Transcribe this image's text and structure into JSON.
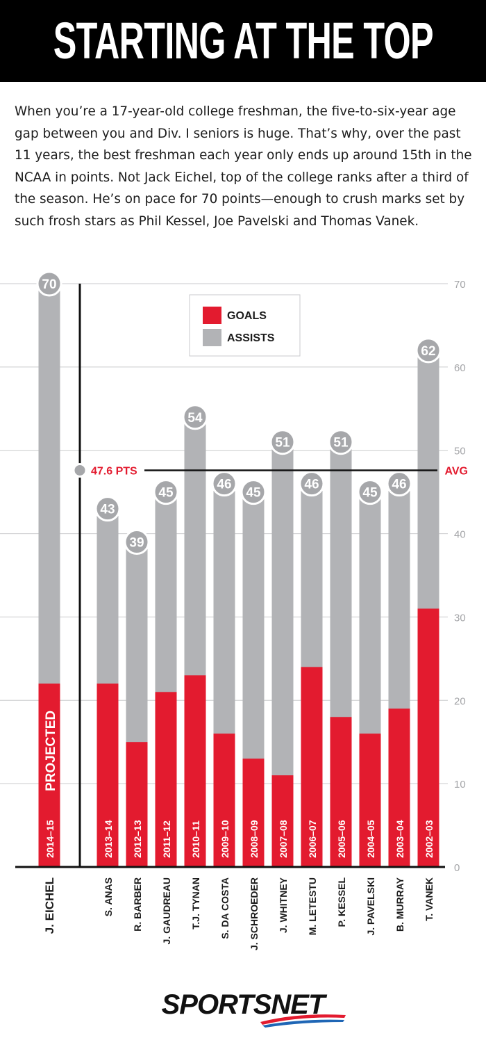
{
  "header": {
    "title": "STARTING AT THE TOP"
  },
  "intro": {
    "text": "When you’re a 17-year-old college freshman, the five-to-six-year age gap between you and Div. I seniors is huge. That’s why, over the past 11 years, the best freshman each year only ends up around 15th in the NCAA in points. Not Jack Eichel, top of the college ranks after a third of the season. He’s on pace for 70 points—enough to crush marks set by such frosh stars as Phil Kessel, Joe Pavelski and Thomas Vanek."
  },
  "chart_data": {
    "type": "bar",
    "stacked": true,
    "categories": [
      "J. EICHEL",
      "S. ANAS",
      "R. BARBER",
      "J. GAUDREAU",
      "T.J. TYNAN",
      "S. DA COSTA",
      "J. SCHROEDER",
      "J. WHITNEY",
      "M. LETESTU",
      "P. KESSEL",
      "J. PAVELSKI",
      "B. MURRAY",
      "T. VANEK"
    ],
    "seasons": [
      "2014–15",
      "2013–14",
      "2012–13",
      "2011–12",
      "2010–11",
      "2009–10",
      "2008–09",
      "2007–08",
      "2006–07",
      "2005–06",
      "2004–05",
      "2003–04",
      "2002–03"
    ],
    "totals": [
      70,
      43,
      39,
      45,
      54,
      46,
      45,
      51,
      46,
      51,
      45,
      46,
      62
    ],
    "series": [
      {
        "name": "GOALS",
        "color": "#e31b2f",
        "values": [
          22,
          22,
          15,
          21,
          23,
          16,
          13,
          11,
          24,
          18,
          16,
          19,
          31
        ]
      },
      {
        "name": "ASSISTS",
        "color": "#b2b3b6",
        "values": [
          48,
          21,
          24,
          24,
          31,
          30,
          32,
          40,
          22,
          33,
          29,
          27,
          31
        ]
      }
    ],
    "projected_label": "PROJECTED",
    "average": {
      "value": 47.6,
      "label": "47.6 PTS",
      "tag": "AVG"
    },
    "ylim": [
      0,
      70
    ],
    "yticks": [
      0,
      10,
      20,
      30,
      40,
      50,
      60,
      70
    ],
    "grid": true,
    "legend_position": "top-left"
  },
  "brand": {
    "name": "SPORTSNET"
  }
}
